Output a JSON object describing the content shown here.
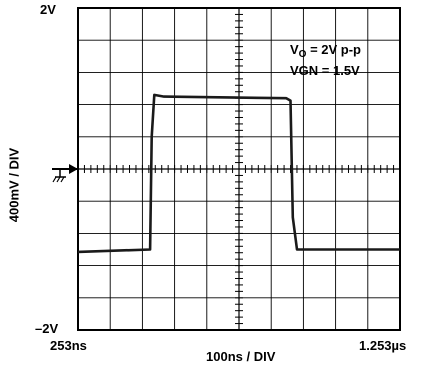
{
  "chart_data": {
    "type": "line",
    "title": "",
    "xlabel": "100ns / DIV",
    "ylabel": "400mV / DIV",
    "x_unit": "ns",
    "xlim": [
      253,
      1253
    ],
    "ylim": [
      -2.0,
      2.0
    ],
    "x_start_label": "253ns",
    "x_end_label": "1.253µs",
    "y_top_label": "2V",
    "y_bottom_label": "–2V",
    "grid": true,
    "x_divisions": 10,
    "y_divisions": 10,
    "annotations": [
      {
        "text": "V",
        "sub": "O",
        "rest": " = 2V p-p"
      },
      {
        "text": "VGN = 1.5V"
      }
    ],
    "ground_marker_level": 0,
    "trace_color": "#1a1a1a",
    "series": [
      {
        "x": [
          253,
          477,
          482,
          490,
          520,
          900,
          913,
          920,
          933,
          1253
        ],
        "y": [
          -1.03,
          -1.0,
          0.4,
          0.92,
          0.9,
          0.88,
          0.85,
          -0.6,
          -1.0,
          -1.0
        ]
      }
    ]
  }
}
